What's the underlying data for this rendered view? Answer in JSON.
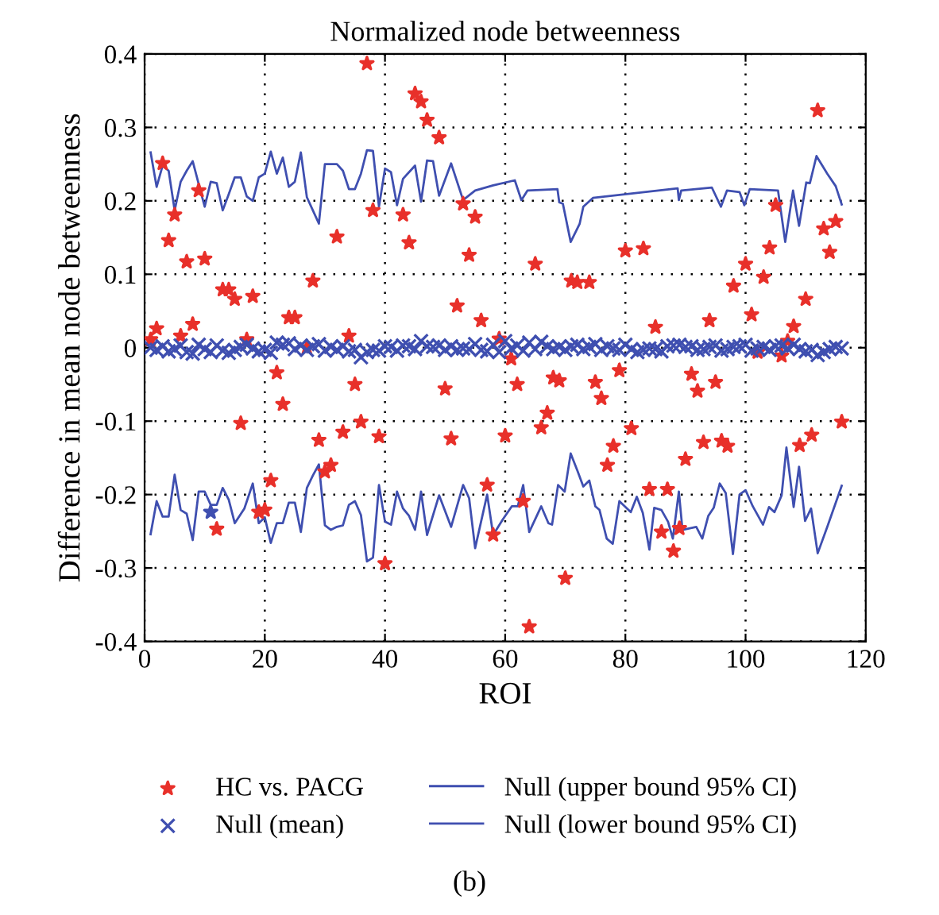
{
  "chart_data": {
    "type": "scatter",
    "title": "Normalized node betweenness",
    "xlabel": "ROI",
    "ylabel": "Difference in mean node betweenness",
    "annotations": [
      "(b)"
    ],
    "xlim": [
      0,
      120
    ],
    "xticks": [
      0,
      20,
      40,
      60,
      80,
      100,
      120
    ],
    "ylim": [
      -0.4,
      0.4
    ],
    "yticks": [
      -0.4,
      -0.3,
      -0.2,
      -0.1,
      0,
      0.1,
      0.2,
      0.3,
      0.4
    ],
    "grid": true,
    "legend": "bottom",
    "series": [
      {
        "name": "HC vs. PACG",
        "marker": "star",
        "color": "#e8302a",
        "x": [
          1,
          2,
          3,
          4,
          5,
          6,
          7,
          8,
          9,
          10,
          12,
          13,
          14,
          15,
          16,
          17,
          18,
          19,
          20,
          21,
          22,
          23,
          24,
          25,
          27,
          28,
          29,
          30,
          31,
          32,
          33,
          34,
          35,
          36,
          37,
          38,
          39,
          40,
          43,
          44,
          45,
          46,
          47,
          49,
          50,
          51,
          52,
          53,
          54,
          55,
          56,
          57,
          58,
          59,
          60,
          61,
          62,
          63,
          64,
          65,
          66,
          67,
          68,
          69,
          70,
          71,
          72,
          74,
          75,
          76,
          77,
          78,
          79,
          80,
          81,
          83,
          84,
          85,
          86,
          87,
          88,
          89,
          90,
          91,
          92,
          93,
          94,
          95,
          96,
          97,
          98,
          100,
          101,
          102,
          103,
          104,
          105,
          106,
          107,
          108,
          109,
          110,
          111,
          112,
          113,
          114,
          115,
          116
        ],
        "values": [
          0.011,
          0.026,
          0.251,
          0.146,
          0.181,
          0.016,
          0.117,
          0.032,
          0.214,
          0.121,
          -0.247,
          0.079,
          0.079,
          0.066,
          -0.103,
          0.011,
          0.07,
          -0.224,
          -0.221,
          -0.181,
          -0.034,
          -0.077,
          0.041,
          0.041,
          0.0,
          0.091,
          -0.126,
          -0.169,
          -0.16,
          0.151,
          -0.115,
          0.016,
          -0.05,
          -0.101,
          0.387,
          0.187,
          -0.121,
          -0.294,
          0.181,
          0.143,
          0.346,
          0.335,
          0.31,
          0.286,
          -0.056,
          -0.124,
          0.057,
          0.196,
          0.126,
          0.178,
          0.037,
          -0.187,
          -0.255,
          0.012,
          -0.12,
          -0.015,
          -0.05,
          -0.209,
          -0.38,
          0.114,
          -0.109,
          -0.089,
          -0.041,
          -0.045,
          -0.314,
          0.091,
          0.089,
          0.089,
          -0.047,
          -0.069,
          -0.16,
          -0.134,
          -0.031,
          0.132,
          -0.11,
          0.135,
          -0.193,
          0.028,
          -0.251,
          -0.193,
          -0.277,
          -0.246,
          -0.152,
          -0.036,
          -0.059,
          -0.129,
          0.037,
          -0.047,
          -0.127,
          -0.134,
          0.084,
          0.114,
          0.045,
          -0.006,
          0.096,
          0.136,
          0.194,
          -0.011,
          0.009,
          0.029,
          -0.133,
          0.066,
          -0.119,
          0.323,
          0.162,
          0.13,
          0.172,
          -0.101
        ]
      },
      {
        "name": "Null (mean)",
        "marker": "cross",
        "color": "#3f4fb0",
        "x": [
          1,
          2,
          3,
          4,
          5,
          6,
          7,
          8,
          9,
          10,
          11,
          12,
          13,
          14,
          15,
          16,
          17,
          18,
          19,
          20,
          21,
          22,
          23,
          24,
          25,
          26,
          27,
          28,
          29,
          30,
          31,
          32,
          33,
          34,
          35,
          36,
          37,
          38,
          39,
          40,
          41,
          42,
          43,
          44,
          45,
          46,
          47,
          48,
          49,
          50,
          51,
          52,
          53,
          54,
          55,
          56,
          57,
          58,
          59,
          60,
          61,
          62,
          63,
          64,
          65,
          66,
          67,
          68,
          69,
          70,
          71,
          72,
          73,
          74,
          75,
          76,
          77,
          78,
          79,
          80,
          81,
          82,
          83,
          84,
          85,
          86,
          87,
          88,
          89,
          90,
          91,
          92,
          93,
          94,
          95,
          96,
          97,
          98,
          99,
          100,
          101,
          102,
          103,
          104,
          105,
          106,
          107,
          108,
          109,
          110,
          111,
          112,
          113,
          114,
          115,
          116
        ],
        "values": [
          0,
          -0.003,
          0.002,
          -0.005,
          -0.002,
          0.003,
          -0.006,
          -0.008,
          0.004,
          -0.002,
          -0.006,
          0.003,
          -0.004,
          -0.007,
          -0.003,
          0.001,
          0.004,
          -0.001,
          -0.005,
          -0.003,
          -0.007,
          0.007,
          0.004,
          0.006,
          -0.002,
          0.003,
          -0.003,
          0.002,
          0.005,
          -0.004,
          0.001,
          -0.003,
          0.002,
          -0.005,
          -0.003,
          -0.013,
          -0.006,
          -0.003,
          -0.004,
          0.002,
          0.001,
          -0.004,
          0.003,
          0.002,
          -0.002,
          0.009,
          0.002,
          0.001,
          0.003,
          -0.003,
          0.002,
          -0.003,
          -0.001,
          -0.002,
          0.005,
          -0.003,
          -0.005,
          0.004,
          -0.006,
          0.009,
          -0.001,
          0.003,
          -0.004,
          0.007,
          -0.002,
          0.008,
          0.002,
          -0.002,
          0.001,
          -0.003,
          0.002,
          0.004,
          -0.002,
          0.001,
          0.005,
          -0.003,
          0.002,
          -0.001,
          -0.003,
          0.004,
          -0.002,
          -0.006,
          -0.003,
          -0.001,
          -0.002,
          -0.005,
          0.002,
          0.003,
          0.004,
          0.001,
          0.002,
          -0.003,
          -0.002,
          0.001,
          0.003,
          -0.004,
          -0.002,
          0.001,
          0.002,
          0.004,
          -0.004,
          -0.001,
          0.001,
          -0.003,
          0.002,
          0.003,
          -0.001,
          0.004,
          -0.002,
          -0.005,
          -0.003,
          -0.01,
          -0.006,
          -0.002,
          0.001,
          -0.001
        ]
      },
      {
        "name": "Null (upper bound 95% CI)",
        "type": "line",
        "line_style": "solid",
        "color": "#3f4fb0",
        "x": [
          1,
          2,
          3,
          4,
          5,
          6,
          7,
          8,
          9,
          10,
          11,
          12,
          13,
          14,
          15,
          16,
          17,
          18,
          19,
          20,
          21,
          22,
          23,
          24,
          25,
          26,
          27,
          28,
          29,
          30,
          31,
          32,
          33,
          34,
          35,
          36,
          37,
          38,
          39,
          40,
          41,
          42,
          43,
          45,
          46,
          47,
          48,
          49,
          51,
          53,
          55,
          58,
          61.6,
          62.7,
          63.7,
          68.7,
          69.0,
          69.6,
          70.9,
          72.4,
          73.0,
          74.6,
          88.7,
          88.9,
          89.3,
          94.4,
          95.9,
          96.9,
          99.0,
          99.8,
          100.7,
          105.4,
          106.6,
          107.9,
          108.9,
          110.1,
          110.7,
          111.8,
          113.6,
          115,
          116
        ],
        "values": [
          0.266,
          0.219,
          0.248,
          0.241,
          0.187,
          0.226,
          0.241,
          0.254,
          0.223,
          0.192,
          0.226,
          0.224,
          0.187,
          0.209,
          0.232,
          0.232,
          0.206,
          0.2,
          0.232,
          0.237,
          0.267,
          0.237,
          0.259,
          0.219,
          0.226,
          0.266,
          0.205,
          0.187,
          0.169,
          0.25,
          0.25,
          0.25,
          0.241,
          0.216,
          0.216,
          0.237,
          0.269,
          0.268,
          0.192,
          0.244,
          0.239,
          0.194,
          0.23,
          0.248,
          0.199,
          0.255,
          0.254,
          0.207,
          0.251,
          0.201,
          0.214,
          0.221,
          0.228,
          0.201,
          0.214,
          0.216,
          0.198,
          0.196,
          0.144,
          0.169,
          0.192,
          0.204,
          0.217,
          0.201,
          0.214,
          0.218,
          0.192,
          0.214,
          0.212,
          0.194,
          0.216,
          0.214,
          0.144,
          0.214,
          0.166,
          0.225,
          0.224,
          0.261,
          0.237,
          0.22,
          0.195
        ]
      },
      {
        "name": "Null (lower bound 95% CI)",
        "type": "line",
        "line_style": "solid",
        "color": "#3f4fb0",
        "x": [
          1,
          2,
          3,
          4,
          5,
          6,
          7,
          8,
          9,
          10,
          11,
          12,
          13,
          14,
          15,
          16.6,
          18,
          19,
          20,
          21,
          22,
          23,
          24,
          25,
          26,
          27,
          28,
          29,
          30,
          31,
          32,
          33,
          34,
          35,
          36,
          37,
          38,
          39,
          40,
          41,
          42,
          43,
          44,
          45,
          46,
          47,
          49,
          51,
          53,
          54,
          55,
          57,
          58,
          59.6,
          61.1,
          62.1,
          63,
          64,
          66,
          67.2,
          67.8,
          68.8,
          69.9,
          70.9,
          72,
          73,
          74,
          75,
          75.7,
          76.9,
          77.9,
          79,
          80.9,
          81.9,
          82.9,
          84,
          84.8,
          86,
          87.1,
          87.9,
          88.9,
          89.5,
          91.8,
          92.8,
          93.8,
          94.7,
          95.7,
          96.7,
          97.9,
          99,
          100,
          101.2,
          102.9,
          103.9,
          104.8,
          106,
          106.8,
          108,
          108.9,
          109.9,
          110.9,
          112,
          113.6,
          116
        ],
        "values": [
          -0.254,
          -0.209,
          -0.23,
          -0.23,
          -0.173,
          -0.221,
          -0.226,
          -0.262,
          -0.196,
          -0.196,
          -0.214,
          -0.214,
          -0.191,
          -0.207,
          -0.239,
          -0.219,
          -0.185,
          -0.239,
          -0.231,
          -0.266,
          -0.239,
          -0.239,
          -0.211,
          -0.211,
          -0.251,
          -0.191,
          -0.174,
          -0.159,
          -0.242,
          -0.248,
          -0.244,
          -0.242,
          -0.214,
          -0.209,
          -0.228,
          -0.291,
          -0.286,
          -0.187,
          -0.237,
          -0.241,
          -0.196,
          -0.219,
          -0.229,
          -0.248,
          -0.196,
          -0.255,
          -0.201,
          -0.244,
          -0.187,
          -0.205,
          -0.273,
          -0.2,
          -0.255,
          -0.234,
          -0.216,
          -0.216,
          -0.187,
          -0.251,
          -0.216,
          -0.239,
          -0.241,
          -0.187,
          -0.196,
          -0.144,
          -0.167,
          -0.189,
          -0.181,
          -0.216,
          -0.221,
          -0.26,
          -0.267,
          -0.209,
          -0.224,
          -0.203,
          -0.225,
          -0.275,
          -0.218,
          -0.221,
          -0.237,
          -0.26,
          -0.196,
          -0.248,
          -0.244,
          -0.26,
          -0.229,
          -0.218,
          -0.185,
          -0.198,
          -0.281,
          -0.2,
          -0.194,
          -0.216,
          -0.241,
          -0.217,
          -0.224,
          -0.201,
          -0.136,
          -0.217,
          -0.162,
          -0.236,
          -0.219,
          -0.28,
          -0.244,
          -0.188
        ]
      },
      {
        "marker": "star",
        "color": "#3f4fb0",
        "x": [
          11
        ],
        "values": [
          -0.224
        ]
      }
    ]
  }
}
